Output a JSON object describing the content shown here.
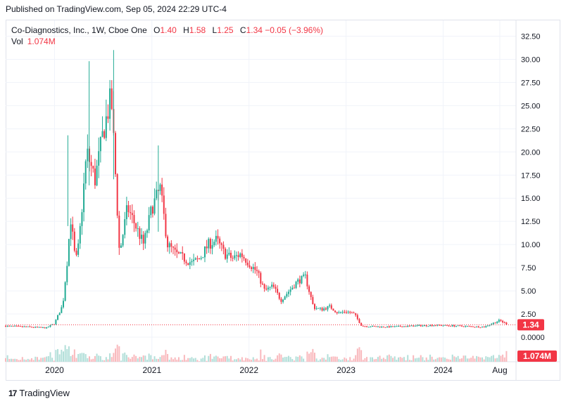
{
  "header": {
    "published": "Published on TradingView.com, Sep 05, 2024 22:29 UTC-4"
  },
  "legend": {
    "symbol": "Co-Diagnostics, Inc., 1W, Cboe One",
    "open_label": "O",
    "open": "1.40",
    "high_label": "H",
    "high": "1.58",
    "low_label": "L",
    "low": "1.25",
    "close_label": "C",
    "close": "1.34",
    "change": "−0.05 (−3.96%)",
    "vol_label": "Vol",
    "vol": "1.074M"
  },
  "price_badge": "1.34",
  "vol_badge": "1.074M",
  "footer": {
    "brand": "TradingView",
    "logo_glyph": "17"
  },
  "colors": {
    "up": "#22ab94",
    "down": "#f23645",
    "vol_up": "#b2dfd9",
    "vol_down": "#f9b9bd",
    "grid": "#f0f3fa",
    "badge": "#f23645"
  },
  "chart_data": {
    "type": "candlestick",
    "title": "Co-Diagnostics, Inc., 1W, Cboe One",
    "ylim": [
      0,
      33.75
    ],
    "y_ticks": [
      "32.50",
      "30.00",
      "27.50",
      "25.00",
      "22.50",
      "20.00",
      "17.50",
      "15.00",
      "12.50",
      "10.00",
      "7.50",
      "5.00",
      "2.50",
      "0.0000"
    ],
    "x_ticks": [
      "2020",
      "2021",
      "2022",
      "2023",
      "2024",
      "Aug"
    ],
    "last_price": 1.34,
    "last_volume": "1.074M",
    "approx_close_path": [
      {
        "date": "2019-07",
        "close": 1.2
      },
      {
        "date": "2019-10",
        "close": 1.1
      },
      {
        "date": "2019-12",
        "close": 1.0
      },
      {
        "date": "2020-01",
        "close": 1.5
      },
      {
        "date": "2020-02",
        "close": 3.5
      },
      {
        "date": "2020-02-20",
        "close": 9.0
      },
      {
        "date": "2020-03",
        "close": 13.0
      },
      {
        "date": "2020-03-20",
        "close": 8.0
      },
      {
        "date": "2020-04",
        "close": 10.0
      },
      {
        "date": "2020-05",
        "close": 20.0
      },
      {
        "date": "2020-06",
        "close": 17.0
      },
      {
        "date": "2020-07",
        "close": 22.0
      },
      {
        "date": "2020-08",
        "close": 26.0
      },
      {
        "date": "2020-08-20",
        "close": 16.0
      },
      {
        "date": "2020-09",
        "close": 9.0
      },
      {
        "date": "2020-10",
        "close": 14.0
      },
      {
        "date": "2020-11",
        "close": 12.0
      },
      {
        "date": "2020-12",
        "close": 10.0
      },
      {
        "date": "2021-01",
        "close": 14.0
      },
      {
        "date": "2021-02",
        "close": 16.0
      },
      {
        "date": "2021-03",
        "close": 10.0
      },
      {
        "date": "2021-04",
        "close": 9.0
      },
      {
        "date": "2021-05",
        "close": 8.5
      },
      {
        "date": "2021-06",
        "close": 8.0
      },
      {
        "date": "2021-07",
        "close": 8.5
      },
      {
        "date": "2021-08",
        "close": 10.0
      },
      {
        "date": "2021-09",
        "close": 10.5
      },
      {
        "date": "2021-10",
        "close": 9.0
      },
      {
        "date": "2021-11",
        "close": 8.5
      },
      {
        "date": "2021-12",
        "close": 9.0
      },
      {
        "date": "2022-01",
        "close": 8.0
      },
      {
        "date": "2022-02",
        "close": 7.0
      },
      {
        "date": "2022-03",
        "close": 5.0
      },
      {
        "date": "2022-04",
        "close": 5.5
      },
      {
        "date": "2022-05",
        "close": 4.0
      },
      {
        "date": "2022-06",
        "close": 5.0
      },
      {
        "date": "2022-07",
        "close": 6.0
      },
      {
        "date": "2022-08",
        "close": 6.5
      },
      {
        "date": "2022-09",
        "close": 3.2
      },
      {
        "date": "2022-10",
        "close": 3.0
      },
      {
        "date": "2022-11",
        "close": 3.3
      },
      {
        "date": "2022-12",
        "close": 2.6
      },
      {
        "date": "2023-01",
        "close": 2.8
      },
      {
        "date": "2023-02",
        "close": 2.5
      },
      {
        "date": "2023-03",
        "close": 1.2
      },
      {
        "date": "2023-06",
        "close": 1.1
      },
      {
        "date": "2023-09",
        "close": 1.2
      },
      {
        "date": "2023-12",
        "close": 1.3
      },
      {
        "date": "2024-03",
        "close": 1.2
      },
      {
        "date": "2024-06",
        "close": 1.1
      },
      {
        "date": "2024-08",
        "close": 1.8
      },
      {
        "date": "2024-09",
        "close": 1.34
      }
    ]
  }
}
